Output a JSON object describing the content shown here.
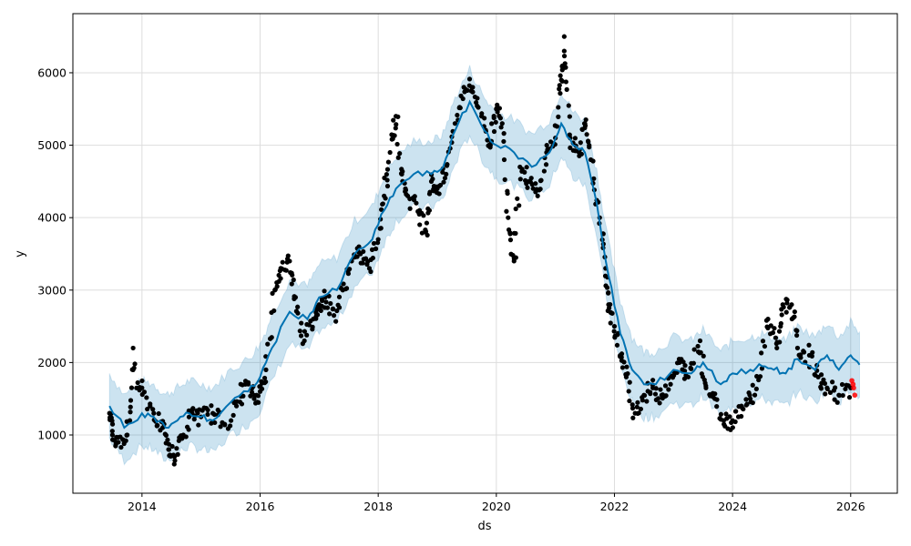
{
  "chart_data": {
    "type": "line",
    "title": "",
    "xlabel": "ds",
    "ylabel": "y",
    "xlim": [
      2012.83,
      2026.79
    ],
    "ylim": [
      196,
      6816
    ],
    "grid": true,
    "xticks": [
      2014,
      2016,
      2018,
      2020,
      2022,
      2024,
      2026
    ],
    "xtick_labels": [
      "2014",
      "2016",
      "2018",
      "2020",
      "2022",
      "2024",
      "2026"
    ],
    "yticks": [
      1000,
      2000,
      3000,
      4000,
      5000,
      6000
    ],
    "ytick_labels": [
      "1000",
      "2000",
      "3000",
      "4000",
      "5000",
      "6000"
    ],
    "colors": {
      "forecast": "#0072B2",
      "band": "#0072B2",
      "actual": "#000000",
      "recent": "#ff0000",
      "grid": "#dddddd"
    },
    "uncertainty_halfwidth": 450,
    "series": [
      {
        "name": "yhat",
        "kind": "line",
        "points": [
          [
            2013.45,
            1400
          ],
          [
            2013.7,
            1100
          ],
          [
            2014.0,
            1300
          ],
          [
            2014.2,
            1250
          ],
          [
            2014.4,
            1100
          ],
          [
            2014.6,
            1200
          ],
          [
            2014.8,
            1300
          ],
          [
            2015.0,
            1250
          ],
          [
            2015.2,
            1200
          ],
          [
            2015.5,
            1450
          ],
          [
            2015.8,
            1600
          ],
          [
            2016.0,
            1800
          ],
          [
            2016.2,
            2200
          ],
          [
            2016.5,
            2700
          ],
          [
            2016.8,
            2600
          ],
          [
            2017.0,
            2900
          ],
          [
            2017.3,
            3000
          ],
          [
            2017.6,
            3500
          ],
          [
            2017.9,
            3700
          ],
          [
            2018.1,
            4100
          ],
          [
            2018.3,
            4400
          ],
          [
            2018.6,
            4600
          ],
          [
            2018.9,
            4600
          ],
          [
            2019.1,
            4700
          ],
          [
            2019.3,
            5200
          ],
          [
            2019.55,
            5600
          ],
          [
            2019.8,
            5200
          ],
          [
            2020.0,
            5000
          ],
          [
            2020.3,
            4900
          ],
          [
            2020.6,
            4700
          ],
          [
            2020.9,
            4900
          ],
          [
            2021.1,
            5300
          ],
          [
            2021.3,
            5000
          ],
          [
            2021.5,
            4900
          ],
          [
            2021.7,
            4200
          ],
          [
            2021.9,
            3200
          ],
          [
            2022.1,
            2400
          ],
          [
            2022.3,
            1900
          ],
          [
            2022.5,
            1700
          ],
          [
            2022.7,
            1700
          ],
          [
            2023.0,
            1900
          ],
          [
            2023.3,
            1850
          ],
          [
            2023.5,
            2000
          ],
          [
            2023.8,
            1700
          ],
          [
            2024.0,
            1850
          ],
          [
            2024.3,
            1900
          ],
          [
            2024.5,
            1950
          ],
          [
            2024.7,
            1900
          ],
          [
            2024.9,
            1850
          ],
          [
            2025.1,
            2050
          ],
          [
            2025.4,
            1900
          ],
          [
            2025.6,
            2100
          ],
          [
            2025.8,
            1900
          ],
          [
            2026.0,
            2100
          ],
          [
            2026.15,
            1970
          ]
        ]
      },
      {
        "name": "actual",
        "kind": "scatter",
        "points": [
          [
            2013.45,
            1300
          ],
          [
            2013.5,
            1000
          ],
          [
            2013.6,
            900
          ],
          [
            2013.75,
            1000
          ],
          [
            2013.85,
            1900
          ],
          [
            2014.0,
            1650
          ],
          [
            2014.2,
            1300
          ],
          [
            2014.35,
            1100
          ],
          [
            2014.45,
            800
          ],
          [
            2014.55,
            700
          ],
          [
            2014.7,
            1000
          ],
          [
            2014.85,
            1300
          ],
          [
            2015.0,
            1250
          ],
          [
            2015.2,
            1300
          ],
          [
            2015.4,
            1150
          ],
          [
            2015.6,
            1400
          ],
          [
            2015.75,
            1700
          ],
          [
            2015.9,
            1500
          ],
          [
            2016.0,
            1600
          ],
          [
            2016.1,
            1900
          ],
          [
            2016.25,
            3000
          ],
          [
            2016.35,
            3300
          ],
          [
            2016.5,
            3400
          ],
          [
            2016.6,
            2900
          ],
          [
            2016.75,
            2300
          ],
          [
            2016.9,
            2600
          ],
          [
            2017.0,
            2800
          ],
          [
            2017.1,
            2900
          ],
          [
            2017.25,
            2650
          ],
          [
            2017.4,
            3000
          ],
          [
            2017.55,
            3400
          ],
          [
            2017.7,
            3500
          ],
          [
            2017.85,
            3300
          ],
          [
            2018.0,
            3700
          ],
          [
            2018.1,
            4300
          ],
          [
            2018.2,
            4900
          ],
          [
            2018.3,
            5400
          ],
          [
            2018.4,
            4600
          ],
          [
            2018.5,
            4300
          ],
          [
            2018.7,
            4100
          ],
          [
            2018.8,
            3800
          ],
          [
            2018.9,
            4500
          ],
          [
            2019.0,
            4400
          ],
          [
            2019.15,
            4600
          ],
          [
            2019.3,
            5300
          ],
          [
            2019.45,
            5800
          ],
          [
            2019.6,
            5800
          ],
          [
            2019.75,
            5400
          ],
          [
            2019.9,
            5000
          ],
          [
            2020.0,
            5500
          ],
          [
            2020.1,
            5300
          ],
          [
            2020.2,
            4000
          ],
          [
            2020.3,
            3400
          ],
          [
            2020.4,
            4700
          ],
          [
            2020.55,
            4500
          ],
          [
            2020.7,
            4300
          ],
          [
            2020.85,
            4900
          ],
          [
            2021.0,
            5100
          ],
          [
            2021.1,
            5900
          ],
          [
            2021.15,
            6300
          ],
          [
            2021.25,
            5100
          ],
          [
            2021.4,
            4900
          ],
          [
            2021.5,
            5300
          ],
          [
            2021.6,
            4800
          ],
          [
            2021.75,
            4000
          ],
          [
            2021.85,
            3300
          ],
          [
            2021.9,
            2800
          ],
          [
            2022.0,
            2500
          ],
          [
            2022.1,
            2100
          ],
          [
            2022.2,
            1800
          ],
          [
            2022.35,
            1300
          ],
          [
            2022.5,
            1550
          ],
          [
            2022.65,
            1650
          ],
          [
            2022.8,
            1550
          ],
          [
            2022.95,
            1700
          ],
          [
            2023.1,
            2000
          ],
          [
            2023.25,
            1800
          ],
          [
            2023.45,
            2300
          ],
          [
            2023.55,
            1650
          ],
          [
            2023.7,
            1500
          ],
          [
            2023.85,
            1200
          ],
          [
            2024.0,
            1200
          ],
          [
            2024.15,
            1400
          ],
          [
            2024.3,
            1500
          ],
          [
            2024.45,
            1800
          ],
          [
            2024.6,
            2600
          ],
          [
            2024.75,
            2200
          ],
          [
            2024.85,
            2800
          ],
          [
            2025.0,
            2800
          ],
          [
            2025.1,
            2200
          ],
          [
            2025.3,
            2100
          ],
          [
            2025.45,
            1800
          ],
          [
            2025.6,
            1650
          ],
          [
            2025.8,
            1550
          ],
          [
            2026.0,
            1650
          ]
        ]
      },
      {
        "name": "recent",
        "kind": "scatter",
        "points": [
          [
            2026.02,
            1750
          ],
          [
            2026.04,
            1700
          ],
          [
            2026.05,
            1650
          ],
          [
            2026.07,
            1550
          ]
        ]
      }
    ],
    "single_outliers": [
      [
        2013.85,
        2200
      ],
      [
        2021.15,
        6500
      ]
    ]
  }
}
